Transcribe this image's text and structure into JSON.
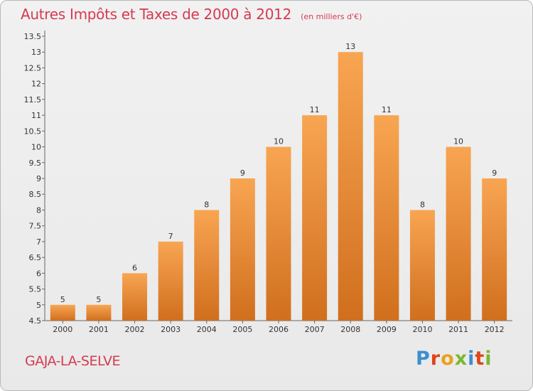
{
  "title": "Autres Impôts et Taxes de 2000 à 2012",
  "subtitle": "(en milliers d'€)",
  "commune": "GAJA-LA-SELVE",
  "logo": {
    "letters": [
      "P",
      "r",
      "o",
      "x",
      "i",
      "t",
      "i"
    ],
    "colors": [
      "#3c8fd0",
      "#e0441b",
      "#e9a21c",
      "#7cb82f",
      "#3c8fd0",
      "#e0441b",
      "#7cb82f"
    ]
  },
  "colors": {
    "bar_top": "#f8a552",
    "bar_bottom": "#d06f1e",
    "title": "#d53a52"
  },
  "chart_data": {
    "type": "bar",
    "categories": [
      "2000",
      "2001",
      "2002",
      "2003",
      "2004",
      "2005",
      "2006",
      "2007",
      "2008",
      "2009",
      "2010",
      "2011",
      "2012"
    ],
    "values": [
      5,
      5,
      6,
      7,
      8,
      9,
      10,
      11,
      13,
      11,
      8,
      10,
      9
    ],
    "ylim": [
      4.5,
      13.5
    ],
    "yticks": [
      "4.5",
      "5",
      "5.5",
      "6",
      "6.5",
      "7",
      "7.5",
      "8",
      "8.5",
      "9",
      "9.5",
      "10",
      "10.5",
      "11",
      "11.5",
      "12",
      "12.5",
      "13",
      "13.5"
    ],
    "grid": false
  }
}
